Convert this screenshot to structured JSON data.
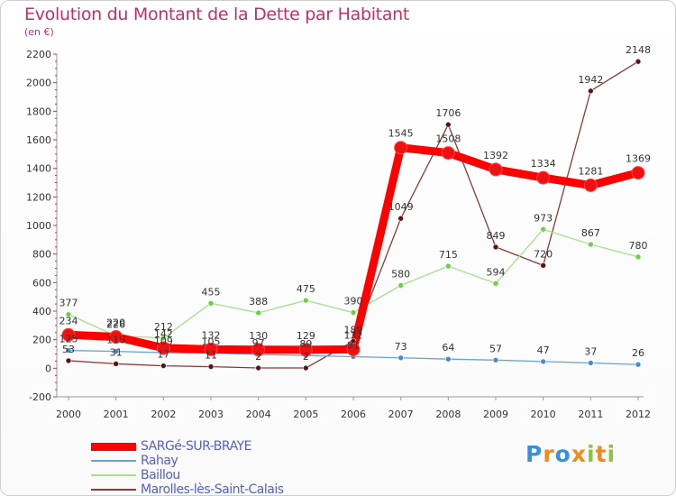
{
  "chart_data": {
    "type": "line",
    "title": "Evolution du Montant de la Dette par Habitant",
    "subtitle": "(en €)",
    "xlabel": "",
    "ylabel": "",
    "categories": [
      "2000",
      "2001",
      "2002",
      "2003",
      "2004",
      "2005",
      "2006",
      "2007",
      "2008",
      "2009",
      "2010",
      "2011",
      "2012"
    ],
    "ylim": [
      -200,
      2200
    ],
    "yticks": [
      -200,
      0,
      200,
      400,
      600,
      800,
      1000,
      1200,
      1400,
      1600,
      1800,
      2000,
      2200
    ],
    "grid": false,
    "legend_position": "bottom-left",
    "series": [
      {
        "name": "SARGé-SUR-BRAYE",
        "color": "#ff0000",
        "marker_color": "#ee1111",
        "style": "thick",
        "values": [
          234,
          220,
          142,
          132,
          130,
          129,
          132,
          1545,
          1508,
          1392,
          1334,
          1281,
          1369
        ],
        "labels": [
          "234",
          "220",
          "142",
          "132",
          "130",
          "129",
          "132",
          "1545",
          "1508",
          "1392",
          "1334",
          "1281",
          "1369"
        ]
      },
      {
        "name": "Rahay",
        "color": "#6aa2d2",
        "marker_color": "#4a8cc8",
        "style": "thin",
        "values": [
          125,
          118,
          109,
          105,
          97,
          89,
          81,
          73,
          64,
          57,
          47,
          37,
          26
        ],
        "labels": [
          "125",
          "118",
          "109",
          "105",
          "97",
          "89",
          "81",
          "73",
          "64",
          "57",
          "47",
          "37",
          "26"
        ]
      },
      {
        "name": "Baillou",
        "color": "#a6e08a",
        "marker_color": "#6ccf4a",
        "style": "thin",
        "values": [
          377,
          226,
          212,
          455,
          388,
          475,
          390,
          580,
          715,
          594,
          973,
          867,
          780
        ],
        "labels": [
          "377",
          "226",
          "212",
          "455",
          "388",
          "475",
          "390",
          "580",
          "715",
          "594",
          "973",
          "867",
          "780"
        ]
      },
      {
        "name": "Marolles-lès-Saint-Calais",
        "color": "#8a3a3a",
        "marker_color": "#5a1414",
        "style": "thin",
        "values": [
          53,
          31,
          17,
          11,
          2,
          2,
          189,
          1049,
          1706,
          849,
          720,
          1942,
          2148
        ],
        "labels": [
          "53",
          "31",
          "17",
          "11",
          "2",
          "2",
          "189",
          "1049",
          "1706",
          "849",
          "720",
          "1942",
          "2148"
        ]
      }
    ]
  },
  "logo": {
    "letters": [
      "P",
      "r",
      "o",
      "x",
      "i",
      "t",
      "i"
    ],
    "colors": [
      "#3a8fd9",
      "#f08a1c",
      "#3a8fd9",
      "#f08a1c",
      "#8cc43c",
      "#f08a1c",
      "#8cc43c"
    ]
  }
}
